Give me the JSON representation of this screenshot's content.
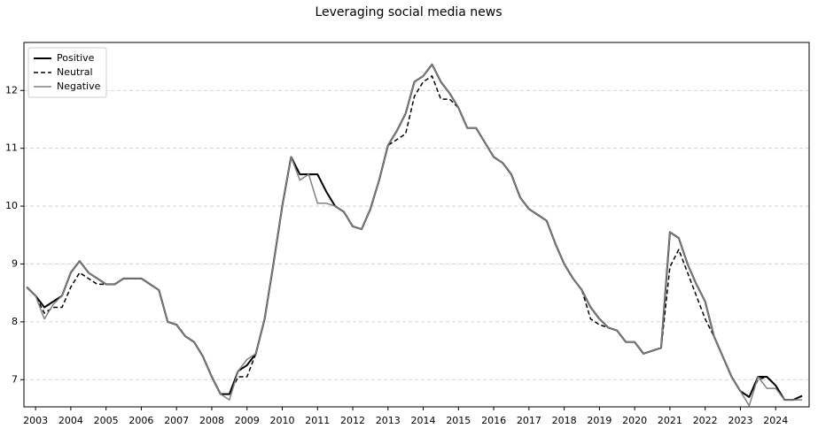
{
  "chart_data": {
    "type": "line",
    "title": "Leveraging social media news",
    "x": [
      2002.75,
      2003,
      2003.25,
      2003.5,
      2003.75,
      2004,
      2004.25,
      2004.5,
      2004.75,
      2005,
      2005.25,
      2005.5,
      2005.75,
      2006,
      2006.25,
      2006.5,
      2006.75,
      2007,
      2007.25,
      2007.5,
      2007.75,
      2008,
      2008.25,
      2008.5,
      2008.75,
      2009,
      2009.25,
      2009.5,
      2009.75,
      2010,
      2010.25,
      2010.5,
      2010.75,
      2011,
      2011.25,
      2011.5,
      2011.75,
      2012,
      2012.25,
      2012.5,
      2012.75,
      2013,
      2013.25,
      2013.5,
      2013.75,
      2014,
      2014.25,
      2014.5,
      2014.75,
      2015,
      2015.25,
      2015.5,
      2015.75,
      2016,
      2016.25,
      2016.5,
      2016.75,
      2017,
      2017.25,
      2017.5,
      2017.75,
      2018,
      2018.25,
      2018.5,
      2018.75,
      2019,
      2019.25,
      2019.5,
      2019.75,
      2020,
      2020.25,
      2020.5,
      2020.75,
      2021,
      2021.25,
      2021.5,
      2021.75,
      2022,
      2022.25,
      2022.5,
      2022.75,
      2023,
      2023.25,
      2023.5,
      2023.75,
      2024,
      2024.25,
      2024.5,
      2024.75
    ],
    "series": [
      {
        "name": "Positive",
        "color": "#000000",
        "linestyle": "solid",
        "linewidth": 2,
        "values": [
          8.6,
          8.45,
          8.25,
          8.35,
          8.45,
          8.85,
          9.05,
          8.85,
          8.75,
          8.65,
          8.65,
          8.75,
          8.75,
          8.75,
          8.65,
          8.55,
          8.0,
          7.95,
          7.75,
          7.65,
          7.4,
          7.05,
          6.75,
          6.75,
          7.15,
          7.25,
          7.45,
          8.05,
          9.0,
          10.0,
          10.85,
          10.55,
          10.55,
          10.55,
          10.25,
          10.0,
          9.9,
          9.65,
          9.6,
          9.95,
          10.45,
          11.05,
          11.3,
          11.6,
          12.15,
          12.25,
          12.45,
          12.15,
          11.95,
          11.7,
          11.35,
          11.35,
          11.1,
          10.85,
          10.75,
          10.55,
          10.15,
          9.95,
          9.85,
          9.75,
          9.35,
          9.0,
          8.75,
          8.55,
          8.25,
          8.05,
          7.9,
          7.85,
          7.65,
          7.65,
          7.45,
          7.5,
          7.55,
          9.55,
          9.45,
          9.0,
          8.65,
          8.35,
          7.75,
          7.4,
          7.05,
          6.8,
          6.7,
          7.05,
          7.05,
          6.9,
          6.65,
          6.65,
          6.72
        ]
      },
      {
        "name": "Neutral",
        "color": "#000000",
        "linestyle": "dashed",
        "linewidth": 1.5,
        "values": [
          8.6,
          8.45,
          8.15,
          8.25,
          8.25,
          8.6,
          8.85,
          8.75,
          8.65,
          8.65,
          8.65,
          8.75,
          8.75,
          8.75,
          8.65,
          8.55,
          8.0,
          7.95,
          7.75,
          7.65,
          7.4,
          7.05,
          6.75,
          6.75,
          7.05,
          7.05,
          7.45,
          8.05,
          9.0,
          10.0,
          10.85,
          10.55,
          10.55,
          10.55,
          10.25,
          10.0,
          9.9,
          9.65,
          9.6,
          9.95,
          10.45,
          11.05,
          11.15,
          11.25,
          11.9,
          12.15,
          12.25,
          11.85,
          11.85,
          11.7,
          11.35,
          11.35,
          11.1,
          10.85,
          10.75,
          10.55,
          10.15,
          9.95,
          9.85,
          9.75,
          9.35,
          9.0,
          8.75,
          8.55,
          8.05,
          7.95,
          7.9,
          7.85,
          7.65,
          7.65,
          7.45,
          7.5,
          7.55,
          8.95,
          9.25,
          8.85,
          8.45,
          8.05,
          7.75,
          7.4,
          7.05,
          6.8,
          6.7,
          7.0,
          7.05,
          6.9,
          6.65,
          6.65,
          6.72
        ]
      },
      {
        "name": "Negative",
        "color": "#808080",
        "linestyle": "solid",
        "linewidth": 1.5,
        "values": [
          8.6,
          8.45,
          8.05,
          8.3,
          8.45,
          8.85,
          9.05,
          8.85,
          8.75,
          8.65,
          8.65,
          8.75,
          8.75,
          8.75,
          8.65,
          8.55,
          8.0,
          7.95,
          7.75,
          7.65,
          7.4,
          7.05,
          6.75,
          6.65,
          7.15,
          7.35,
          7.45,
          8.05,
          9.0,
          10.0,
          10.85,
          10.45,
          10.55,
          10.05,
          10.05,
          10.0,
          9.9,
          9.65,
          9.6,
          9.95,
          10.45,
          11.05,
          11.3,
          11.6,
          12.15,
          12.25,
          12.45,
          12.15,
          11.95,
          11.7,
          11.35,
          11.35,
          11.1,
          10.85,
          10.75,
          10.55,
          10.15,
          9.95,
          9.85,
          9.75,
          9.35,
          9.0,
          8.75,
          8.55,
          8.25,
          8.05,
          7.9,
          7.85,
          7.65,
          7.65,
          7.45,
          7.5,
          7.55,
          9.55,
          9.45,
          9.0,
          8.65,
          8.35,
          7.75,
          7.4,
          7.05,
          6.8,
          6.55,
          7.05,
          6.85,
          6.85,
          6.65,
          6.65,
          6.65
        ]
      }
    ],
    "xlim": [
      2002.67,
      2024.95
    ],
    "xticks": [
      2003,
      2004,
      2005,
      2006,
      2007,
      2008,
      2009,
      2010,
      2011,
      2012,
      2013,
      2014,
      2015,
      2016,
      2017,
      2018,
      2019,
      2020,
      2021,
      2022,
      2023,
      2024
    ],
    "ylim": [
      6.53,
      12.83
    ],
    "yticks": [
      7,
      8,
      9,
      10,
      11,
      12
    ],
    "grid": "y",
    "legend": "upper left"
  }
}
